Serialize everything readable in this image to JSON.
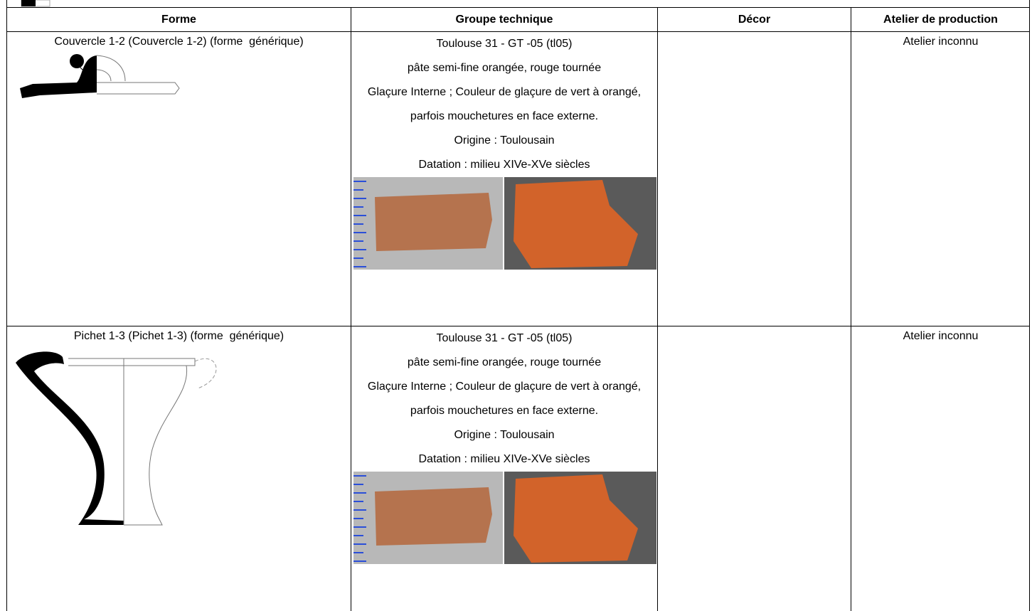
{
  "table": {
    "headers": [
      "Forme",
      "Groupe technique",
      "Décor",
      "Atelier de production"
    ],
    "rows": [
      {
        "forme": "Couvercle 1-2 (Couvercle 1-2) (forme  générique)",
        "groupe": [
          "Toulouse 31 - GT -05 (tl05)",
          "pâte semi-fine orangée, rouge tournée",
          "Glaçure Interne ; Couleur de glaçure de vert à orangé, parfois mouchetures en face externe.",
          "Origine : Toulousain",
          "Datation : milieu XIVe-XVe siècles"
        ],
        "atelier": "Atelier inconnu"
      },
      {
        "forme": "Pichet 1-3 (Pichet 1-3) (forme  générique)",
        "groupe": [
          "Toulouse 31 - GT -05 (tl05)",
          "pâte semi-fine orangée, rouge tournée",
          "Glaçure Interne ; Couleur de glaçure de vert à orangé, parfois mouchetures en face externe.",
          "Origine : Toulousain",
          "Datation : milieu XIVe-XVe siècles"
        ],
        "atelier": "Atelier inconnu"
      }
    ]
  }
}
